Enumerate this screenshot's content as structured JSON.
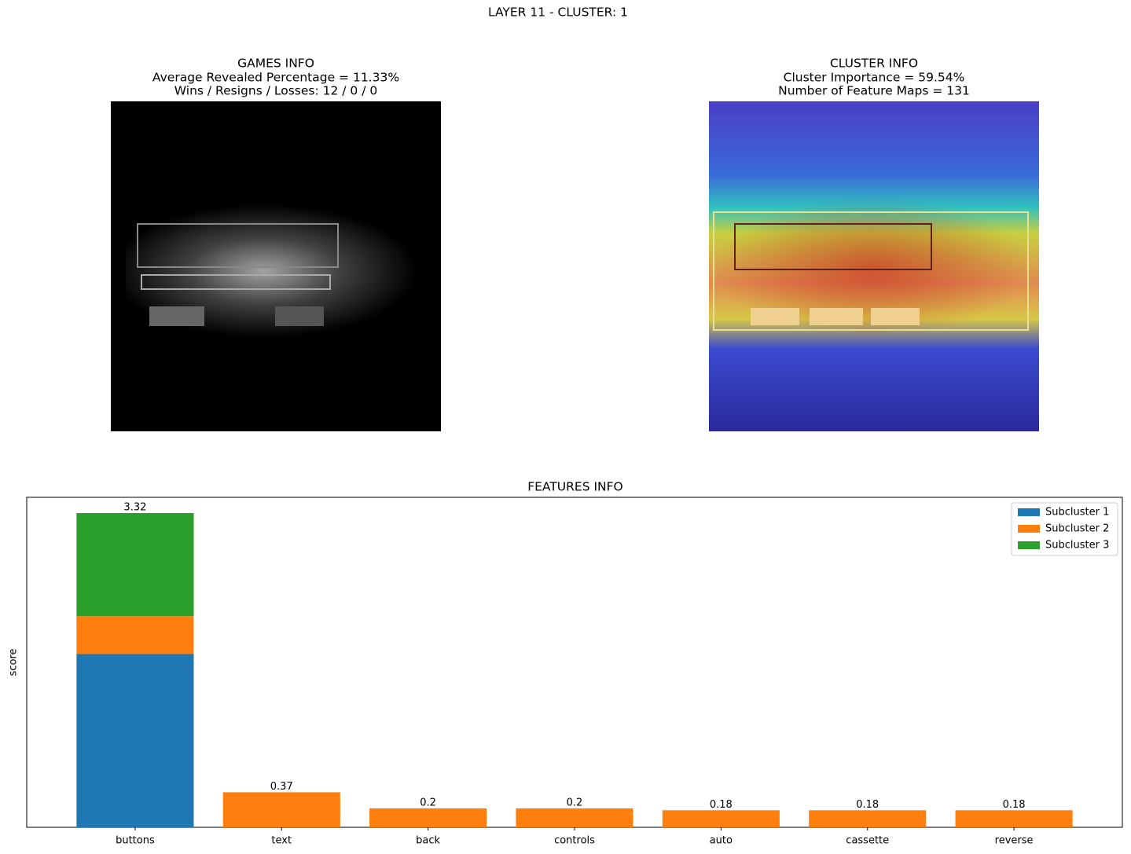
{
  "figure_title": "LAYER 11 - CLUSTER: 1",
  "games_info": {
    "lines": [
      "GAMES INFO",
      "Average Revealed Percentage = 11.33%",
      "Wins / Resigns / Losses: 12 / 0 / 0"
    ]
  },
  "cluster_info": {
    "lines": [
      "CLUSTER INFO",
      "Cluster Importance = 59.54%",
      "Number of Feature Maps = 131"
    ]
  },
  "chart_data": {
    "type": "stacked_bar",
    "title": "FEATURES INFO",
    "y_label": "score",
    "categories": [
      "buttons",
      "text",
      "back",
      "controls",
      "auto",
      "cassette",
      "reverse"
    ],
    "series": [
      {
        "name": "Subcluster 1",
        "color": "#1f77b4",
        "values": [
          1.83,
          0,
          0,
          0,
          0,
          0,
          0
        ]
      },
      {
        "name": "Subcluster 2",
        "color": "#ff7f0e",
        "values": [
          0.4,
          0.37,
          0.2,
          0.2,
          0.18,
          0.18,
          0.18
        ]
      },
      {
        "name": "Subcluster 3",
        "color": "#2ca02c",
        "values": [
          1.09,
          0,
          0,
          0,
          0,
          0,
          0
        ]
      }
    ],
    "totals": [
      3.32,
      0.37,
      0.2,
      0.2,
      0.18,
      0.18,
      0.18
    ],
    "ylim": [
      0,
      3.486
    ],
    "legend": "upper right"
  }
}
